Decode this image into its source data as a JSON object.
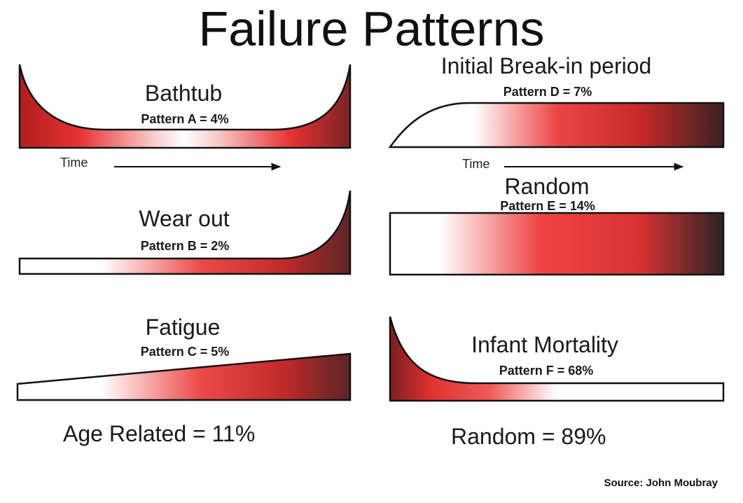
{
  "title": "Failure Patterns",
  "patterns": [
    {
      "name": "Bathtub",
      "label": "Pattern A = 4%",
      "percent": 4
    },
    {
      "name": "Wear out",
      "label": "Pattern B = 2%",
      "percent": 2
    },
    {
      "name": "Fatigue",
      "label": "Pattern C = 5%",
      "percent": 5
    },
    {
      "name": "Initial Break-in period",
      "label": "Pattern D = 7%",
      "percent": 7
    },
    {
      "name": "Random",
      "label": "Pattern E = 14%",
      "percent": 14
    },
    {
      "name": "Infant Mortality",
      "label": "Pattern F = 68%",
      "percent": 68
    }
  ],
  "time_label": "Time",
  "summary": {
    "age_related": "Age Related = 11%",
    "random": "Random = 89%"
  },
  "source": "Source: John Moubray",
  "colors": {
    "red": "#e02828",
    "dark": "#2a2020",
    "outline": "#111111"
  }
}
